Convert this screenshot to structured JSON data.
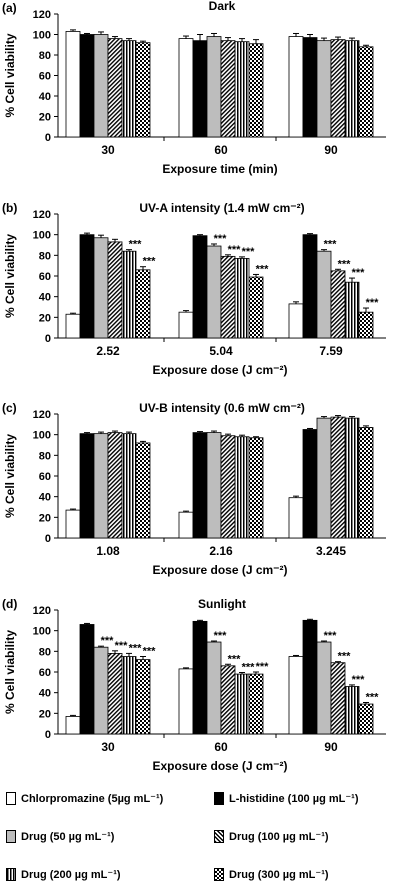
{
  "colors": {
    "chlorpromazine": "#ffffff",
    "histidine": "#000000",
    "drug50": "#bdbdbd",
    "drug100": "diagonal-hatch",
    "drug200": "vertical-stripes",
    "drug300": "checkerboard"
  },
  "legend": [
    {
      "id": "chlor",
      "label": "Chlorpromazine (5µg mL⁻¹)"
    },
    {
      "id": "hist",
      "label": "L-histidine (100 µg mL⁻¹)"
    },
    {
      "id": "d50",
      "label": "Drug (50 µg mL⁻¹)"
    },
    {
      "id": "d100",
      "label": "Drug (100 µg mL⁻¹)"
    },
    {
      "id": "d200",
      "label": "Drug (200 µg mL⁻¹)"
    },
    {
      "id": "d300",
      "label": "Drug (300 µg mL⁻¹)"
    }
  ],
  "chart_data": [
    {
      "type": "bar",
      "panel_label": "(a)",
      "title": "Dark",
      "xlabel": "Exposure time (min)",
      "ylabel": "% Cell viability",
      "ylim": [
        0,
        120
      ],
      "yticks": [
        0,
        20,
        40,
        60,
        80,
        100,
        120
      ],
      "categories": [
        "30",
        "60",
        "90"
      ],
      "series": [
        {
          "name": "Chlorpromazine (5µg mL⁻¹)",
          "values": [
            103,
            96,
            98
          ],
          "errors": [
            1.5,
            2.5,
            3
          ]
        },
        {
          "name": "L-histidine (100 µg mL⁻¹)",
          "values": [
            100,
            94,
            97
          ],
          "errors": [
            1,
            6,
            3
          ]
        },
        {
          "name": "Drug (50 µg mL⁻¹)",
          "values": [
            100,
            98,
            94
          ],
          "errors": [
            2.5,
            3,
            2.5
          ]
        },
        {
          "name": "Drug (100 µg mL⁻¹)",
          "values": [
            96,
            94,
            95
          ],
          "errors": [
            2,
            3,
            2.5
          ]
        },
        {
          "name": "Drug (200 µg mL⁻¹)",
          "values": [
            94,
            93,
            94
          ],
          "errors": [
            2,
            3,
            2.5
          ]
        },
        {
          "name": "Drug (300 µg mL⁻¹)",
          "values": [
            92,
            91,
            88
          ],
          "errors": [
            1.5,
            4,
            1.5
          ]
        }
      ],
      "annotations": [],
      "grid": false,
      "legend_position": "bottom"
    },
    {
      "type": "bar",
      "panel_label": "(b)",
      "title": "UV-A intensity (1.4 mW cm⁻²)",
      "xlabel": "Exposure dose (J cm⁻²)",
      "ylabel": "% Cell viability",
      "ylim": [
        0,
        120
      ],
      "yticks": [
        0,
        20,
        40,
        60,
        80,
        100,
        120
      ],
      "categories": [
        "2.52",
        "5.04",
        "7.59"
      ],
      "series": [
        {
          "name": "Chlorpromazine (5µg mL⁻¹)",
          "values": [
            23,
            25,
            33
          ],
          "errors": [
            1,
            1.5,
            2
          ]
        },
        {
          "name": "L-histidine (100 µg mL⁻¹)",
          "values": [
            100,
            99,
            100
          ],
          "errors": [
            1.5,
            1,
            1
          ]
        },
        {
          "name": "Drug (50 µg mL⁻¹)",
          "values": [
            97,
            89,
            84
          ],
          "errors": [
            2.5,
            2,
            1.5
          ]
        },
        {
          "name": "Drug (100 µg mL⁻¹)",
          "values": [
            93,
            79,
            65
          ],
          "errors": [
            2.5,
            1.5,
            1.5
          ]
        },
        {
          "name": "Drug (200 µg mL⁻¹)",
          "values": [
            84,
            77,
            54
          ],
          "errors": [
            1.5,
            1.5,
            4
          ]
        },
        {
          "name": "Drug (300 µg mL⁻¹)",
          "values": [
            66,
            59,
            25
          ],
          "errors": [
            3,
            2.5,
            4
          ]
        }
      ],
      "annotations": [
        {
          "category": 0,
          "series": 4,
          "text": "***"
        },
        {
          "category": 0,
          "series": 5,
          "text": "***"
        },
        {
          "category": 1,
          "series": 2,
          "text": "***"
        },
        {
          "category": 1,
          "series": 3,
          "text": "***"
        },
        {
          "category": 1,
          "series": 4,
          "text": "***"
        },
        {
          "category": 1,
          "series": 5,
          "text": "***"
        },
        {
          "category": 2,
          "series": 2,
          "text": "***"
        },
        {
          "category": 2,
          "series": 3,
          "text": "***"
        },
        {
          "category": 2,
          "series": 4,
          "text": "***"
        },
        {
          "category": 2,
          "series": 5,
          "text": "***"
        }
      ],
      "grid": false
    },
    {
      "type": "bar",
      "panel_label": "(c)",
      "title": "UV-B intensity (0.6 mW cm⁻²)",
      "xlabel": "Exposure dose (J cm⁻²)",
      "ylabel": "% Cell viability",
      "ylim": [
        0,
        120
      ],
      "yticks": [
        0,
        20,
        40,
        60,
        80,
        100,
        120
      ],
      "categories": [
        "1.08",
        "2.16",
        "3.245"
      ],
      "series": [
        {
          "name": "Chlorpromazine (5µg mL⁻¹)",
          "values": [
            27,
            25,
            39
          ],
          "errors": [
            1,
            1,
            1.5
          ]
        },
        {
          "name": "L-histidine (100 µg mL⁻¹)",
          "values": [
            101,
            102,
            105
          ],
          "errors": [
            1,
            1,
            1
          ]
        },
        {
          "name": "Drug (50 µg mL⁻¹)",
          "values": [
            101,
            102,
            116
          ],
          "errors": [
            1.5,
            1.5,
            1.5
          ]
        },
        {
          "name": "Drug (100 µg mL⁻¹)",
          "values": [
            102,
            99,
            117
          ],
          "errors": [
            1.5,
            1.5,
            1.5
          ]
        },
        {
          "name": "Drug (200 µg mL⁻¹)",
          "values": [
            101,
            98,
            116
          ],
          "errors": [
            1.5,
            1.5,
            1.5
          ]
        },
        {
          "name": "Drug (300 µg mL⁻¹)",
          "values": [
            92,
            97,
            107
          ],
          "errors": [
            1.5,
            1,
            1.5
          ]
        }
      ],
      "annotations": [],
      "grid": false
    },
    {
      "type": "bar",
      "panel_label": "(d)",
      "title": "Sunlight",
      "xlabel": "Exposure dose (J cm⁻²)",
      "ylabel": "% Cell viability",
      "ylim": [
        0,
        120
      ],
      "yticks": [
        0,
        20,
        40,
        60,
        80,
        100,
        120
      ],
      "categories": [
        "30",
        "60",
        "90"
      ],
      "series": [
        {
          "name": "Chlorpromazine (5µg mL⁻¹)",
          "values": [
            17,
            63,
            75
          ],
          "errors": [
            1,
            1,
            1
          ]
        },
        {
          "name": "L-histidine (100 µg mL⁻¹)",
          "values": [
            106,
            109,
            110
          ],
          "errors": [
            1,
            1,
            1
          ]
        },
        {
          "name": "Drug (50 µg mL⁻¹)",
          "values": [
            84,
            89,
            89
          ],
          "errors": [
            1,
            1,
            1
          ]
        },
        {
          "name": "Drug (100 µg mL⁻¹)",
          "values": [
            78,
            66,
            69
          ],
          "errors": [
            2.5,
            1.5,
            1
          ]
        },
        {
          "name": "Drug (200 µg mL⁻¹)",
          "values": [
            75,
            58,
            46
          ],
          "errors": [
            3,
            1.5,
            1.5
          ]
        },
        {
          "name": "Drug (300 µg mL⁻¹)",
          "values": [
            72,
            58,
            29
          ],
          "errors": [
            3,
            2,
            1.5
          ]
        }
      ],
      "annotations": [
        {
          "category": 0,
          "series": 2,
          "text": "***"
        },
        {
          "category": 0,
          "series": 3,
          "text": "***"
        },
        {
          "category": 0,
          "series": 4,
          "text": "***"
        },
        {
          "category": 0,
          "series": 5,
          "text": "***"
        },
        {
          "category": 1,
          "series": 2,
          "text": "***"
        },
        {
          "category": 1,
          "series": 3,
          "text": "***"
        },
        {
          "category": 1,
          "series": 4,
          "text": "***"
        },
        {
          "category": 1,
          "series": 5,
          "text": "***"
        },
        {
          "category": 2,
          "series": 2,
          "text": "***"
        },
        {
          "category": 2,
          "series": 3,
          "text": "***"
        },
        {
          "category": 2,
          "series": 4,
          "text": "***"
        },
        {
          "category": 2,
          "series": 5,
          "text": "***"
        }
      ],
      "grid": false
    }
  ]
}
